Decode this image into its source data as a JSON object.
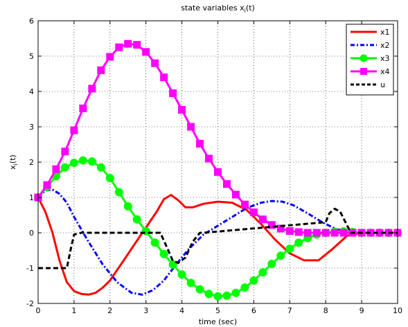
{
  "chart_data": {
    "type": "line",
    "title_main": "state variables x",
    "title_sub": "i",
    "title_tail": "(t)",
    "xlabel": "time (sec)",
    "ylabel_main": "x",
    "ylabel_sub": "i",
    "ylabel_tail": "(t)",
    "xlim": [
      0,
      10
    ],
    "ylim": [
      -2,
      6
    ],
    "xticks": [
      0,
      1,
      2,
      3,
      4,
      5,
      6,
      7,
      8,
      9,
      10
    ],
    "yticks": [
      -2,
      -1,
      0,
      1,
      2,
      3,
      4,
      5,
      6
    ],
    "grid": true,
    "legend_position": "top-right",
    "series": [
      {
        "name": "x1",
        "color": "#ff0000",
        "style": "solid",
        "marker": "none",
        "x": [
          0,
          0.2,
          0.4,
          0.6,
          0.8,
          1.0,
          1.2,
          1.4,
          1.6,
          1.8,
          2.0,
          2.4,
          2.8,
          3.0,
          3.3,
          3.5,
          3.7,
          3.9,
          4.1,
          4.3,
          4.6,
          5.0,
          5.4,
          5.8,
          6.2,
          6.6,
          7.0,
          7.4,
          7.8,
          8.2,
          8.6,
          9.0,
          10.0
        ],
        "y": [
          1.0,
          0.6,
          0.0,
          -0.8,
          -1.4,
          -1.65,
          -1.73,
          -1.75,
          -1.7,
          -1.55,
          -1.35,
          -0.75,
          -0.15,
          0.15,
          0.6,
          0.95,
          1.07,
          0.92,
          0.72,
          0.72,
          0.82,
          0.88,
          0.85,
          0.65,
          0.25,
          -0.2,
          -0.58,
          -0.78,
          -0.78,
          -0.45,
          -0.08,
          0.0,
          0.0
        ]
      },
      {
        "name": "x2",
        "color": "#0000ff",
        "style": "dashdot",
        "marker": "none",
        "x": [
          0,
          0.2,
          0.4,
          0.6,
          0.8,
          1.0,
          1.4,
          1.8,
          2.2,
          2.6,
          2.9,
          3.2,
          3.5,
          3.8,
          4.2,
          4.6,
          5.0,
          5.4,
          5.8,
          6.2,
          6.5,
          6.8,
          7.1,
          7.5,
          7.9,
          8.3,
          8.7,
          9.0,
          10.0
        ],
        "y": [
          1.0,
          1.2,
          1.22,
          1.1,
          0.85,
          0.45,
          -0.25,
          -0.9,
          -1.4,
          -1.7,
          -1.75,
          -1.62,
          -1.35,
          -0.95,
          -0.45,
          -0.05,
          0.2,
          0.45,
          0.7,
          0.85,
          0.9,
          0.88,
          0.78,
          0.55,
          0.3,
          0.1,
          0.02,
          0.0,
          0.0
        ]
      },
      {
        "name": "x3",
        "color": "#00ff00",
        "style": "solid",
        "marker": "circle",
        "x": [
          0,
          0.25,
          0.5,
          0.75,
          1.0,
          1.25,
          1.5,
          1.75,
          2.0,
          2.25,
          2.5,
          2.75,
          3.0,
          3.25,
          3.5,
          3.75,
          4.0,
          4.25,
          4.5,
          4.75,
          5.0,
          5.25,
          5.5,
          5.75,
          6.0,
          6.25,
          6.5,
          6.75,
          7.0,
          7.25,
          7.5,
          7.75,
          8.0,
          8.25,
          8.5,
          8.75,
          9.0,
          9.25,
          9.5,
          9.75,
          10.0
        ],
        "y": [
          1.0,
          1.3,
          1.6,
          1.85,
          1.98,
          2.05,
          2.02,
          1.85,
          1.55,
          1.15,
          0.75,
          0.38,
          0.05,
          -0.28,
          -0.6,
          -0.9,
          -1.18,
          -1.42,
          -1.6,
          -1.73,
          -1.8,
          -1.78,
          -1.7,
          -1.55,
          -1.35,
          -1.12,
          -0.88,
          -0.65,
          -0.45,
          -0.28,
          -0.15,
          -0.05,
          0.0,
          0.03,
          0.04,
          0.02,
          0.0,
          0.0,
          0.0,
          0.0,
          0.0
        ]
      },
      {
        "name": "x4",
        "color": "#ff00ff",
        "style": "solid",
        "marker": "square",
        "x": [
          0,
          0.25,
          0.5,
          0.75,
          1.0,
          1.25,
          1.5,
          1.75,
          2.0,
          2.25,
          2.5,
          2.75,
          3.0,
          3.25,
          3.5,
          3.75,
          4.0,
          4.25,
          4.5,
          4.75,
          5.0,
          5.25,
          5.5,
          5.75,
          6.0,
          6.25,
          6.5,
          6.75,
          7.0,
          7.25,
          7.5,
          7.75,
          8.0,
          8.25,
          8.5,
          8.75,
          9.0,
          9.25,
          9.5,
          9.75,
          10.0
        ],
        "y": [
          1.0,
          1.35,
          1.8,
          2.3,
          2.9,
          3.52,
          4.08,
          4.6,
          4.98,
          5.25,
          5.35,
          5.32,
          5.12,
          4.8,
          4.4,
          3.95,
          3.48,
          3.0,
          2.52,
          2.1,
          1.72,
          1.38,
          1.08,
          0.8,
          0.58,
          0.38,
          0.22,
          0.12,
          0.05,
          0.02,
          0.0,
          0.0,
          0.0,
          0.0,
          0.0,
          0.0,
          0.0,
          0.0,
          0.0,
          0.0,
          0.0
        ]
      },
      {
        "name": "u",
        "color": "#000000",
        "style": "dashed",
        "marker": "none",
        "x": [
          0,
          0.8,
          0.9,
          1.0,
          1.2,
          3.4,
          3.6,
          3.75,
          3.9,
          4.1,
          4.3,
          4.5,
          4.6,
          8.0,
          8.1,
          8.25,
          8.4,
          8.55,
          8.7,
          10.0
        ],
        "y": [
          -1.0,
          -1.0,
          -0.5,
          -0.05,
          0.0,
          0.0,
          -0.45,
          -0.8,
          -0.85,
          -0.7,
          -0.25,
          0.0,
          0.0,
          0.3,
          0.55,
          0.68,
          0.6,
          0.3,
          0.0,
          0.0
        ]
      }
    ]
  }
}
